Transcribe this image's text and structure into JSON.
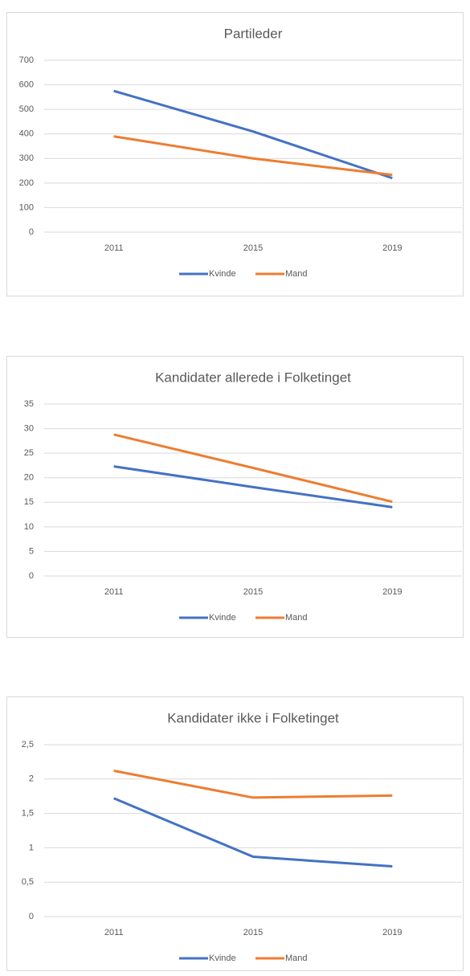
{
  "chart_data": [
    {
      "type": "line",
      "title": "Partileder",
      "categories": [
        "2011",
        "2015",
        "2019"
      ],
      "series": [
        {
          "name": "Kvinde",
          "color": "#4472c4",
          "values": [
            575,
            410,
            220
          ]
        },
        {
          "name": "Mand",
          "color": "#ed7d31",
          "values": [
            390,
            300,
            233
          ]
        }
      ],
      "ylim": [
        0,
        700
      ],
      "yticks": [
        0,
        100,
        200,
        300,
        400,
        500,
        600,
        700
      ],
      "grid": true,
      "legend": "bottom"
    },
    {
      "type": "line",
      "title": "Kandidater allerede i Folketinget",
      "categories": [
        "2011",
        "2015",
        "2019"
      ],
      "series": [
        {
          "name": "Kvinde",
          "color": "#4472c4",
          "values": [
            22.3,
            18.1,
            14
          ]
        },
        {
          "name": "Mand",
          "color": "#ed7d31",
          "values": [
            28.8,
            22,
            15.1
          ]
        }
      ],
      "ylim": [
        0,
        35
      ],
      "yticks": [
        0,
        5,
        10,
        15,
        20,
        25,
        30,
        35
      ],
      "grid": true,
      "legend": "bottom"
    },
    {
      "type": "line",
      "title": "Kandidater ikke i Folketinget",
      "categories": [
        "2011",
        "2015",
        "2019"
      ],
      "series": [
        {
          "name": "Kvinde",
          "color": "#4472c4",
          "values": [
            1.72,
            0.87,
            0.73
          ]
        },
        {
          "name": "Mand",
          "color": "#ed7d31",
          "values": [
            2.12,
            1.73,
            1.76
          ]
        }
      ],
      "ylim": [
        0,
        2.5
      ],
      "yticks": [
        0,
        {
          "value": 0.5,
          "label": "0,5"
        },
        1,
        {
          "value": 1.5,
          "label": "1,5"
        },
        2,
        {
          "value": 2.5,
          "label": "2,5"
        }
      ],
      "grid": true,
      "legend": "bottom"
    }
  ]
}
